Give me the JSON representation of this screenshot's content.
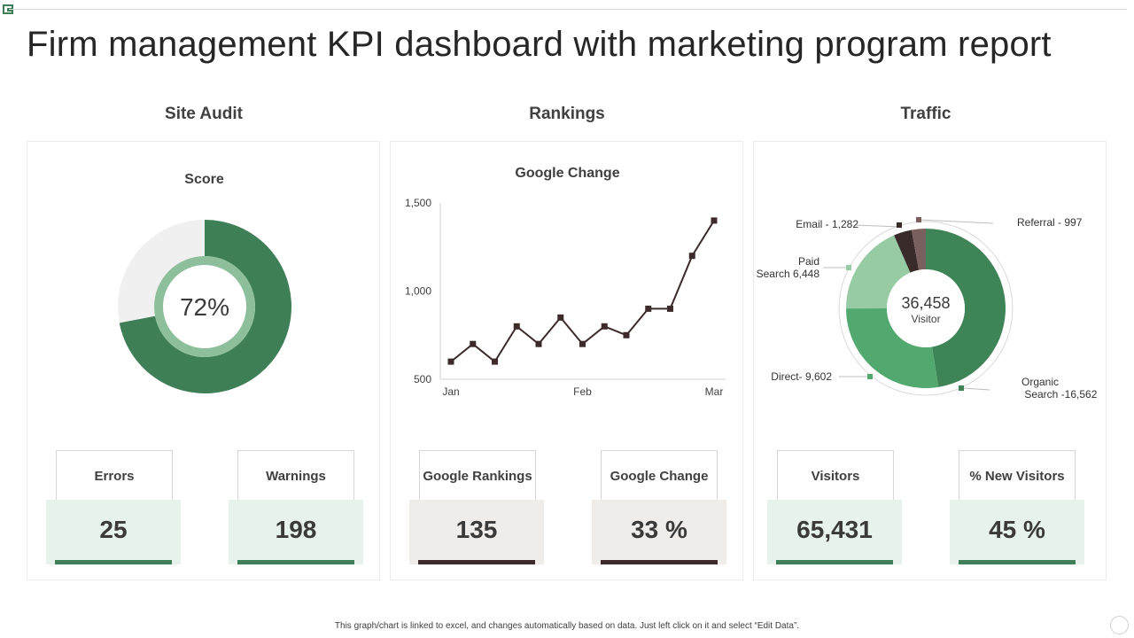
{
  "title": "Firm management KPI dashboard with marketing program report",
  "sections": {
    "site_audit": "Site Audit",
    "rankings": "Rankings",
    "traffic": "Traffic"
  },
  "site_audit": {
    "chart_title": "Score",
    "score_label": "72%",
    "kpis": [
      {
        "label": "Errors",
        "value": "25"
      },
      {
        "label": "Warnings",
        "value": "198"
      }
    ]
  },
  "rankings": {
    "chart_title": "Google Change",
    "kpis": [
      {
        "label": "Google Rankings",
        "value": "135"
      },
      {
        "label": "Google Change",
        "value": "33 %"
      }
    ]
  },
  "traffic": {
    "center_value": "36,458",
    "center_label": "Visitor",
    "kpis": [
      {
        "label": "Visitors",
        "value": "65,431"
      },
      {
        "label": "% New Visitors",
        "value": "45 %"
      }
    ]
  },
  "colors": {
    "green": "#3f7f58",
    "light_green": "#e8f2ec",
    "dark_brown": "#3d2b2b",
    "light_grey": "#efecea"
  },
  "chart_data": [
    {
      "type": "pie",
      "title": "Score",
      "categories": [
        "Score",
        "Remaining"
      ],
      "values": [
        72,
        28
      ],
      "colors": [
        "#3f7f58",
        "#f0f0f0"
      ]
    },
    {
      "type": "line",
      "title": "Google Change",
      "x_ticks": [
        "Jan",
        "Feb",
        "Mar"
      ],
      "y_ticks": [
        "500",
        "1,000",
        "1,500"
      ],
      "ylim": [
        500,
        1500
      ],
      "values": [
        600,
        700,
        600,
        800,
        700,
        850,
        700,
        800,
        750,
        900,
        900,
        1200,
        1400
      ]
    },
    {
      "type": "pie",
      "title": "Traffic",
      "categories": [
        "Organic Search",
        "Direct",
        "Paid Search",
        "Email",
        "Referral"
      ],
      "values": [
        16562,
        9602,
        6448,
        1282,
        997
      ],
      "labels": [
        "Organic\n Search -16,562",
        "Direct- 9,602",
        "Paid\nSearch 6,448",
        "Email - 1,282",
        "Referral - 997"
      ],
      "colors": [
        "#3f8456",
        "#52a96f",
        "#96cba3",
        "#3a2b2b",
        "#7a5f5f"
      ]
    }
  ],
  "footer": "This graph/chart is linked to excel, and changes automatically based on data. Just left click on it and select “Edit Data”."
}
